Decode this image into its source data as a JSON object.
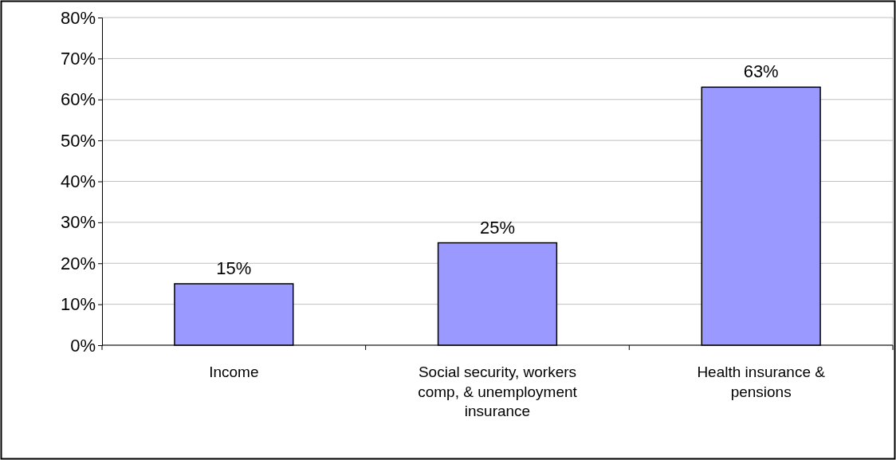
{
  "chart_data": {
    "type": "bar",
    "categories": [
      "Income",
      "Social security, workers comp, & unemployment insurance",
      "Health insurance & pensions"
    ],
    "values": [
      15,
      25,
      63
    ],
    "color": "#9999ff",
    "value_labels": [
      "15%",
      "25%",
      "63%"
    ],
    "ylim": [
      0,
      80
    ],
    "yticks": [
      {
        "value": 0,
        "label": "0%"
      },
      {
        "value": 10,
        "label": "10%"
      },
      {
        "value": 20,
        "label": "20%"
      },
      {
        "value": 30,
        "label": "30%"
      },
      {
        "value": 40,
        "label": "40%"
      },
      {
        "value": 50,
        "label": "50%"
      },
      {
        "value": 60,
        "label": "60%"
      },
      {
        "value": 70,
        "label": "70%"
      },
      {
        "value": 80,
        "label": "80%"
      }
    ],
    "grid": "y"
  }
}
